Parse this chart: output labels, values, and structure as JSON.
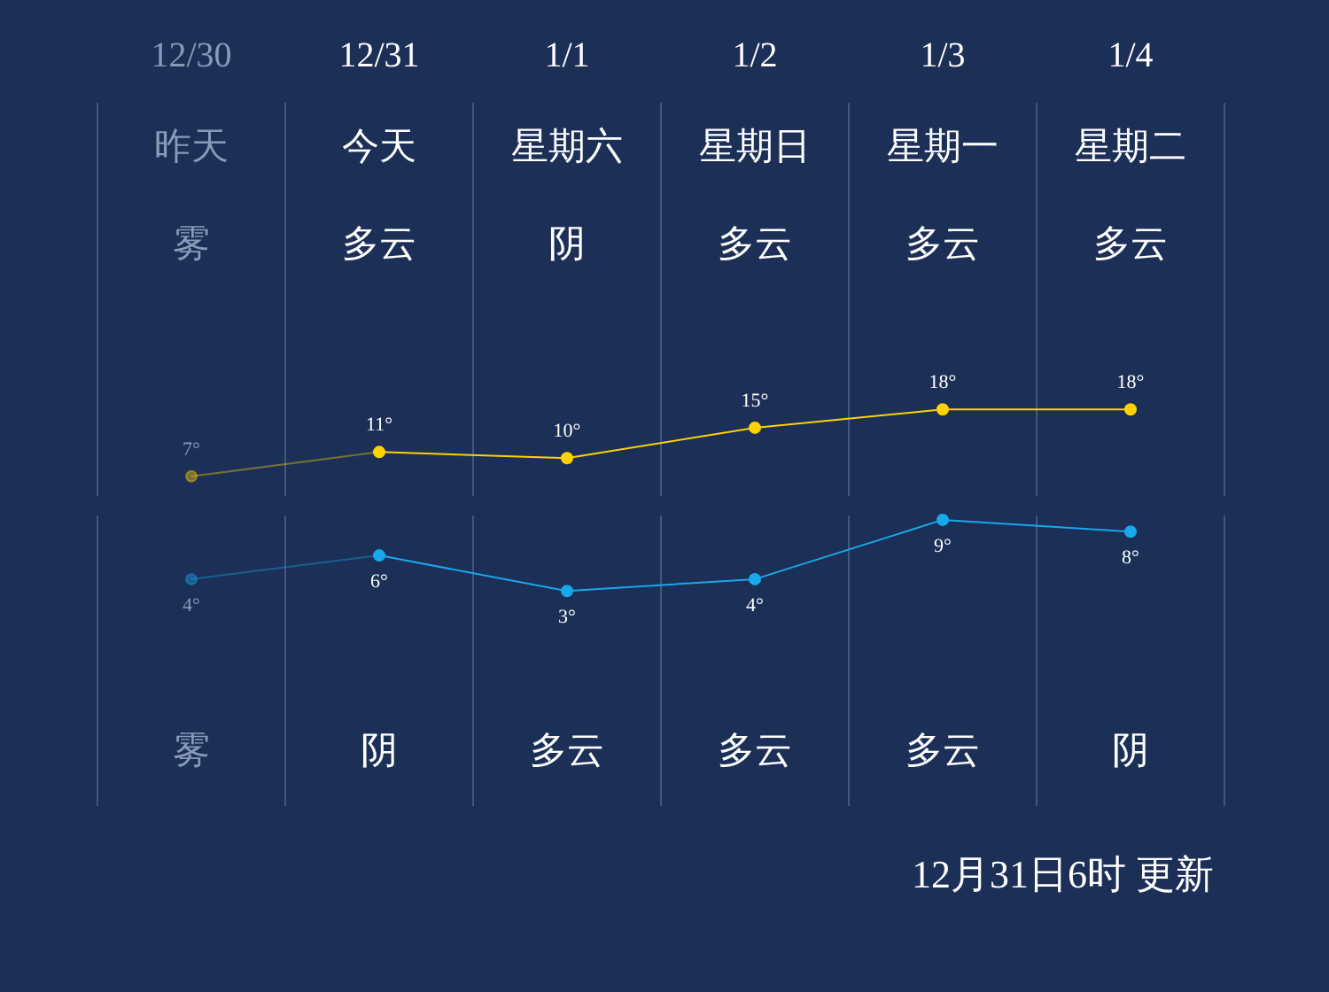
{
  "chart_data": [
    {
      "type": "line",
      "categories": [
        "12/30",
        "12/31",
        "1/1",
        "1/2",
        "1/3",
        "1/4"
      ],
      "series": [
        {
          "color": "#ffd200",
          "values": [
            7,
            11,
            10,
            15,
            18,
            18
          ],
          "value_labels": [
            "7°",
            "11°",
            "10°",
            "15°",
            "18°",
            "18°"
          ]
        }
      ],
      "annotations": [
        "昨天",
        "今天",
        "星期六",
        "星期日",
        "星期一",
        "星期二",
        "雾",
        "多云",
        "阴",
        "多云",
        "多云",
        "多云"
      ],
      "grid": "x",
      "legend": false,
      "marker": "circle",
      "line_style": "solid"
    },
    {
      "type": "line",
      "categories": [
        null,
        null,
        null,
        null,
        null,
        null
      ],
      "series": [
        {
          "color": "#19a8ec",
          "values": [
            4,
            6,
            3,
            4,
            9,
            8
          ],
          "value_labels": [
            "4°",
            "6°",
            "3°",
            "4°",
            "9°",
            "8°"
          ]
        }
      ],
      "annotations": [
        "雾",
        "阴",
        "多云",
        "多云",
        "多云",
        "阴",
        "12月31日6时 更新"
      ],
      "grid": "x",
      "legend": false,
      "marker": "circle",
      "line_style": "solid"
    }
  ]
}
